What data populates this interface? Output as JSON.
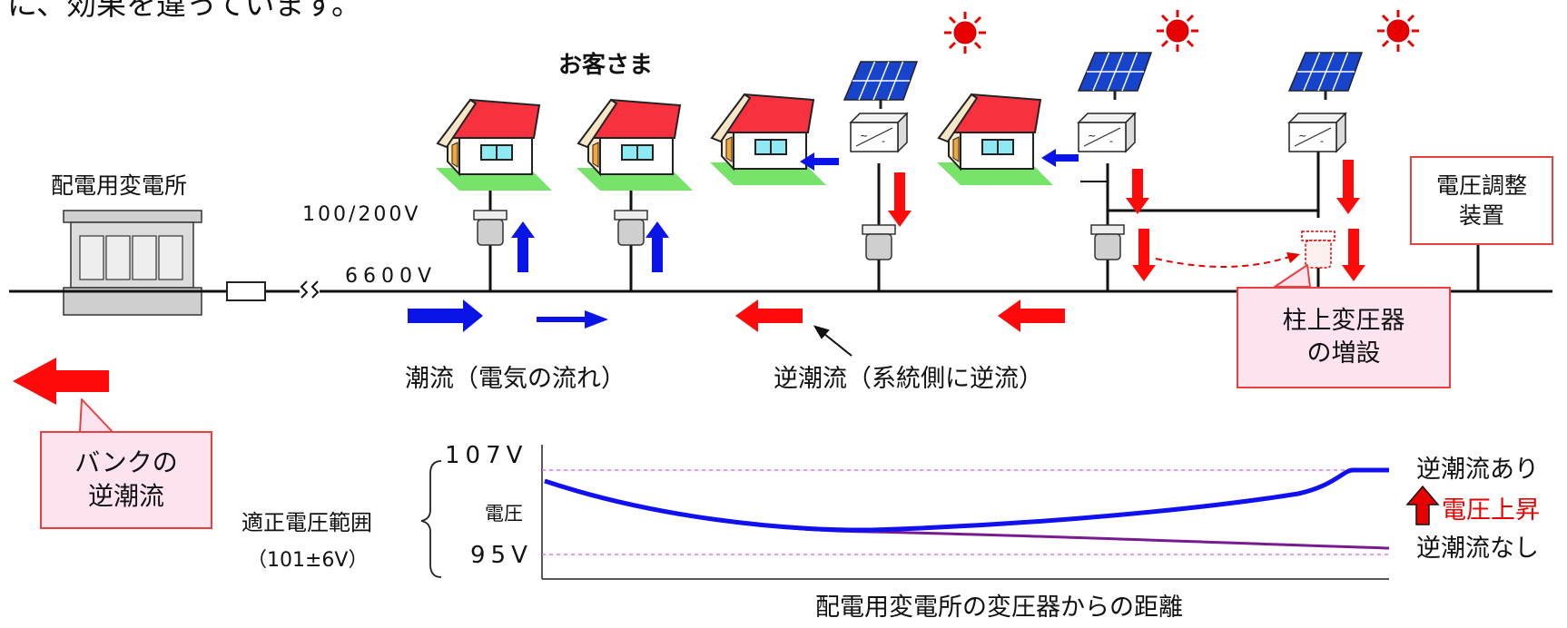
{
  "header_text": "に、効果を違っています。",
  "substation": {
    "label": "配電用変電所"
  },
  "customers_label": "お客さま",
  "voltages": {
    "low": "100/200V",
    "high": "6600V"
  },
  "voltage_regulator": {
    "line1": "電圧調整",
    "line2": "装置"
  },
  "transformer_addition": {
    "line1": "柱上変圧器",
    "line2": "の増設"
  },
  "bank_reverse_flow": {
    "line1": "バンクの",
    "line2": "逆潮流"
  },
  "flow_captions": {
    "forward": "潮流（電気の流れ）",
    "reverse": "逆潮流（系統側に逆流）"
  },
  "voltage_chart": {
    "top_voltage": "107V",
    "bottom_voltage": "95V",
    "axis_label": "電圧",
    "range_label": "適正電圧範囲",
    "range_value": "（101±6V）",
    "x_label": "配電用変電所の変圧器からの距離",
    "with_reverse_flow": "逆潮流あり",
    "without_reverse_flow": "逆潮流なし",
    "voltage_rise": "電圧上昇"
  },
  "colors": {
    "forward_flow": "#0a14e6",
    "reverse_flow": "#ff0a0a",
    "box_border": "#e8403e",
    "box_fill": "#fde3ef"
  }
}
